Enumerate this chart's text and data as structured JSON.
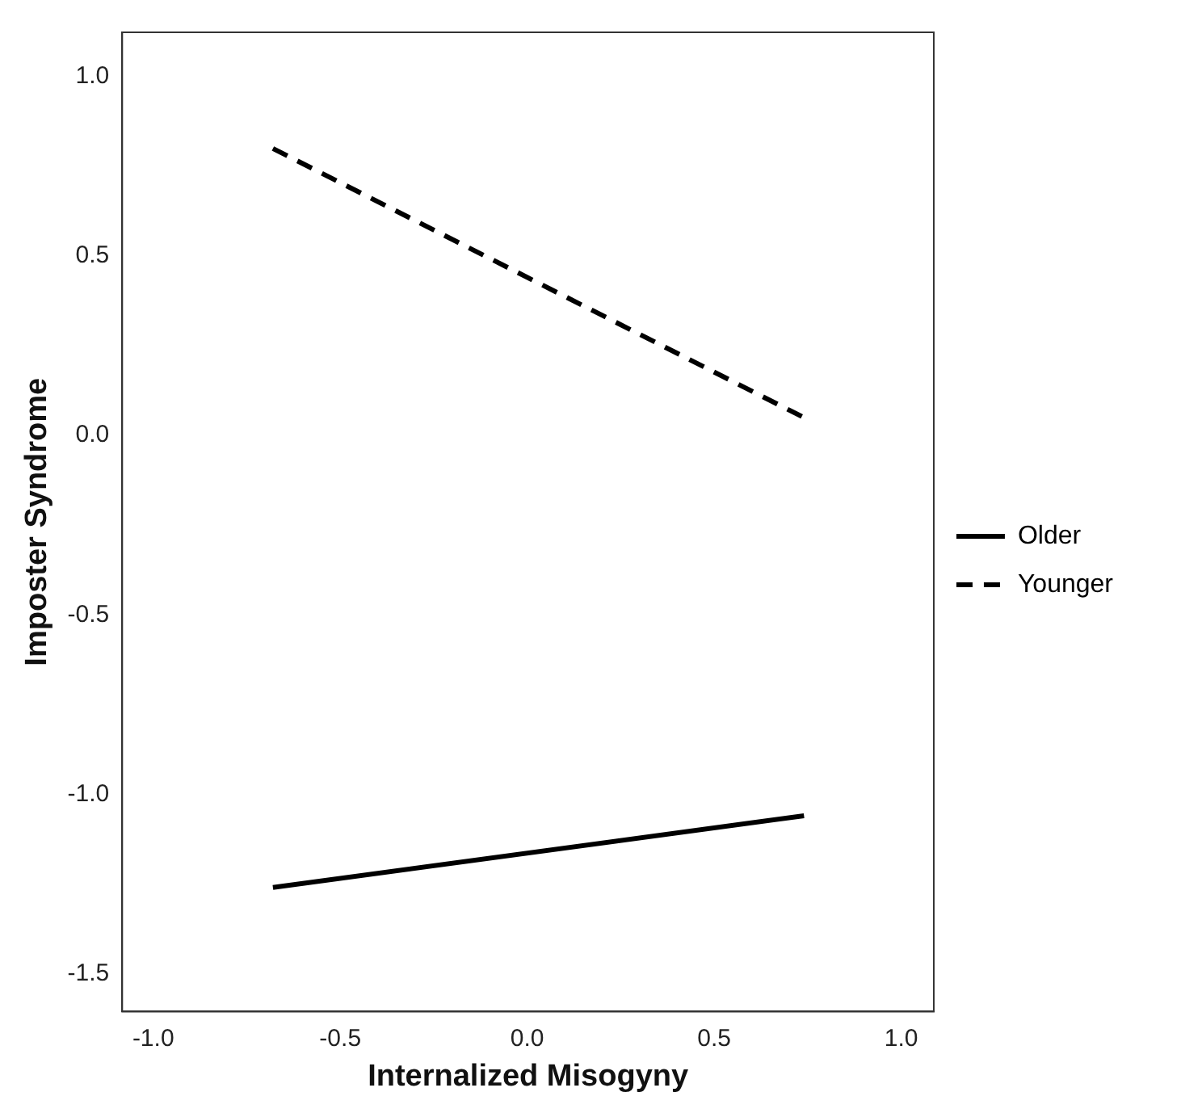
{
  "chart_data": {
    "type": "line",
    "xlabel": "Internalized Misogyny",
    "ylabel": "Imposter Syndrome",
    "x": [
      -0.68,
      0.74
    ],
    "series": [
      {
        "name": "Older",
        "color": "#000000",
        "values": [
          -1.26,
          -1.06
        ],
        "line_style": "solid"
      },
      {
        "name": "Younger",
        "color": "#000000",
        "values": [
          0.8,
          0.05
        ],
        "line_style": "dashed"
      }
    ],
    "xlim": [
      -1.083,
      1.087
    ],
    "ylim": [
      -1.606,
      1.124
    ],
    "xticks": [
      {
        "value": -1,
        "label": "-1.0"
      },
      {
        "value": -0.5,
        "label": "-0.5"
      },
      {
        "value": 0,
        "label": "0.0"
      },
      {
        "value": 0.5,
        "label": "0.5"
      },
      {
        "value": 1,
        "label": "1.0"
      }
    ],
    "yticks": [
      {
        "value": -1.5,
        "label": "-1.5"
      },
      {
        "value": -1,
        "label": "-1.0"
      },
      {
        "value": -0.5,
        "label": "-0.5"
      },
      {
        "value": 0,
        "label": "0.0"
      },
      {
        "value": 0.5,
        "label": "0.5"
      },
      {
        "value": 1,
        "label": "1.0"
      }
    ],
    "grid": false,
    "legend": "right",
    "marker": "none"
  }
}
